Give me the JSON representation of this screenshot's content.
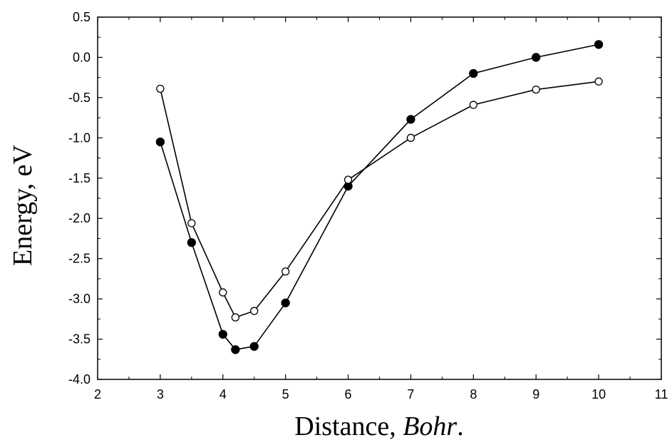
{
  "chart_data": {
    "type": "line",
    "xlabel_text": "Distance, ",
    "xlabel_italic": "Bohr",
    "xlabel_suffix": ".",
    "ylabel": "Energy, eV",
    "xlim": [
      2,
      11
    ],
    "ylim": [
      -4.0,
      0.5
    ],
    "xticks": [
      2,
      3,
      4,
      5,
      6,
      7,
      8,
      9,
      10,
      11
    ],
    "xtick_labels": [
      "2",
      "3",
      "4",
      "5",
      "6",
      "7",
      "8",
      "9",
      "10",
      "11"
    ],
    "yticks": [
      0.5,
      0.0,
      -0.5,
      -1.0,
      -1.5,
      -2.0,
      -2.5,
      -3.0,
      -3.5,
      -4.0
    ],
    "ytick_labels": [
      "0.5",
      "0.0",
      "-0.5",
      "-1.0",
      "-1.5",
      "-2.0",
      "-2.5",
      "-3.0",
      "-3.5",
      "-4.0"
    ],
    "grid": false,
    "series": [
      {
        "marker": "filled-circle",
        "color": "#000000",
        "x": [
          3,
          3.5,
          4,
          4.2,
          4.5,
          5,
          6,
          7,
          8,
          9,
          10
        ],
        "y": [
          -1.05,
          -2.3,
          -3.44,
          -3.63,
          -3.59,
          -3.05,
          -1.6,
          -0.77,
          -0.2,
          0.0,
          0.16
        ]
      },
      {
        "marker": "open-circle",
        "color": "#000000",
        "x": [
          3,
          3.5,
          4,
          4.2,
          4.5,
          5,
          6,
          7,
          8,
          9,
          10
        ],
        "y": [
          -0.39,
          -2.06,
          -2.92,
          -3.23,
          -3.15,
          -2.66,
          -1.52,
          -1.0,
          -0.59,
          -0.4,
          -0.3
        ]
      }
    ]
  }
}
